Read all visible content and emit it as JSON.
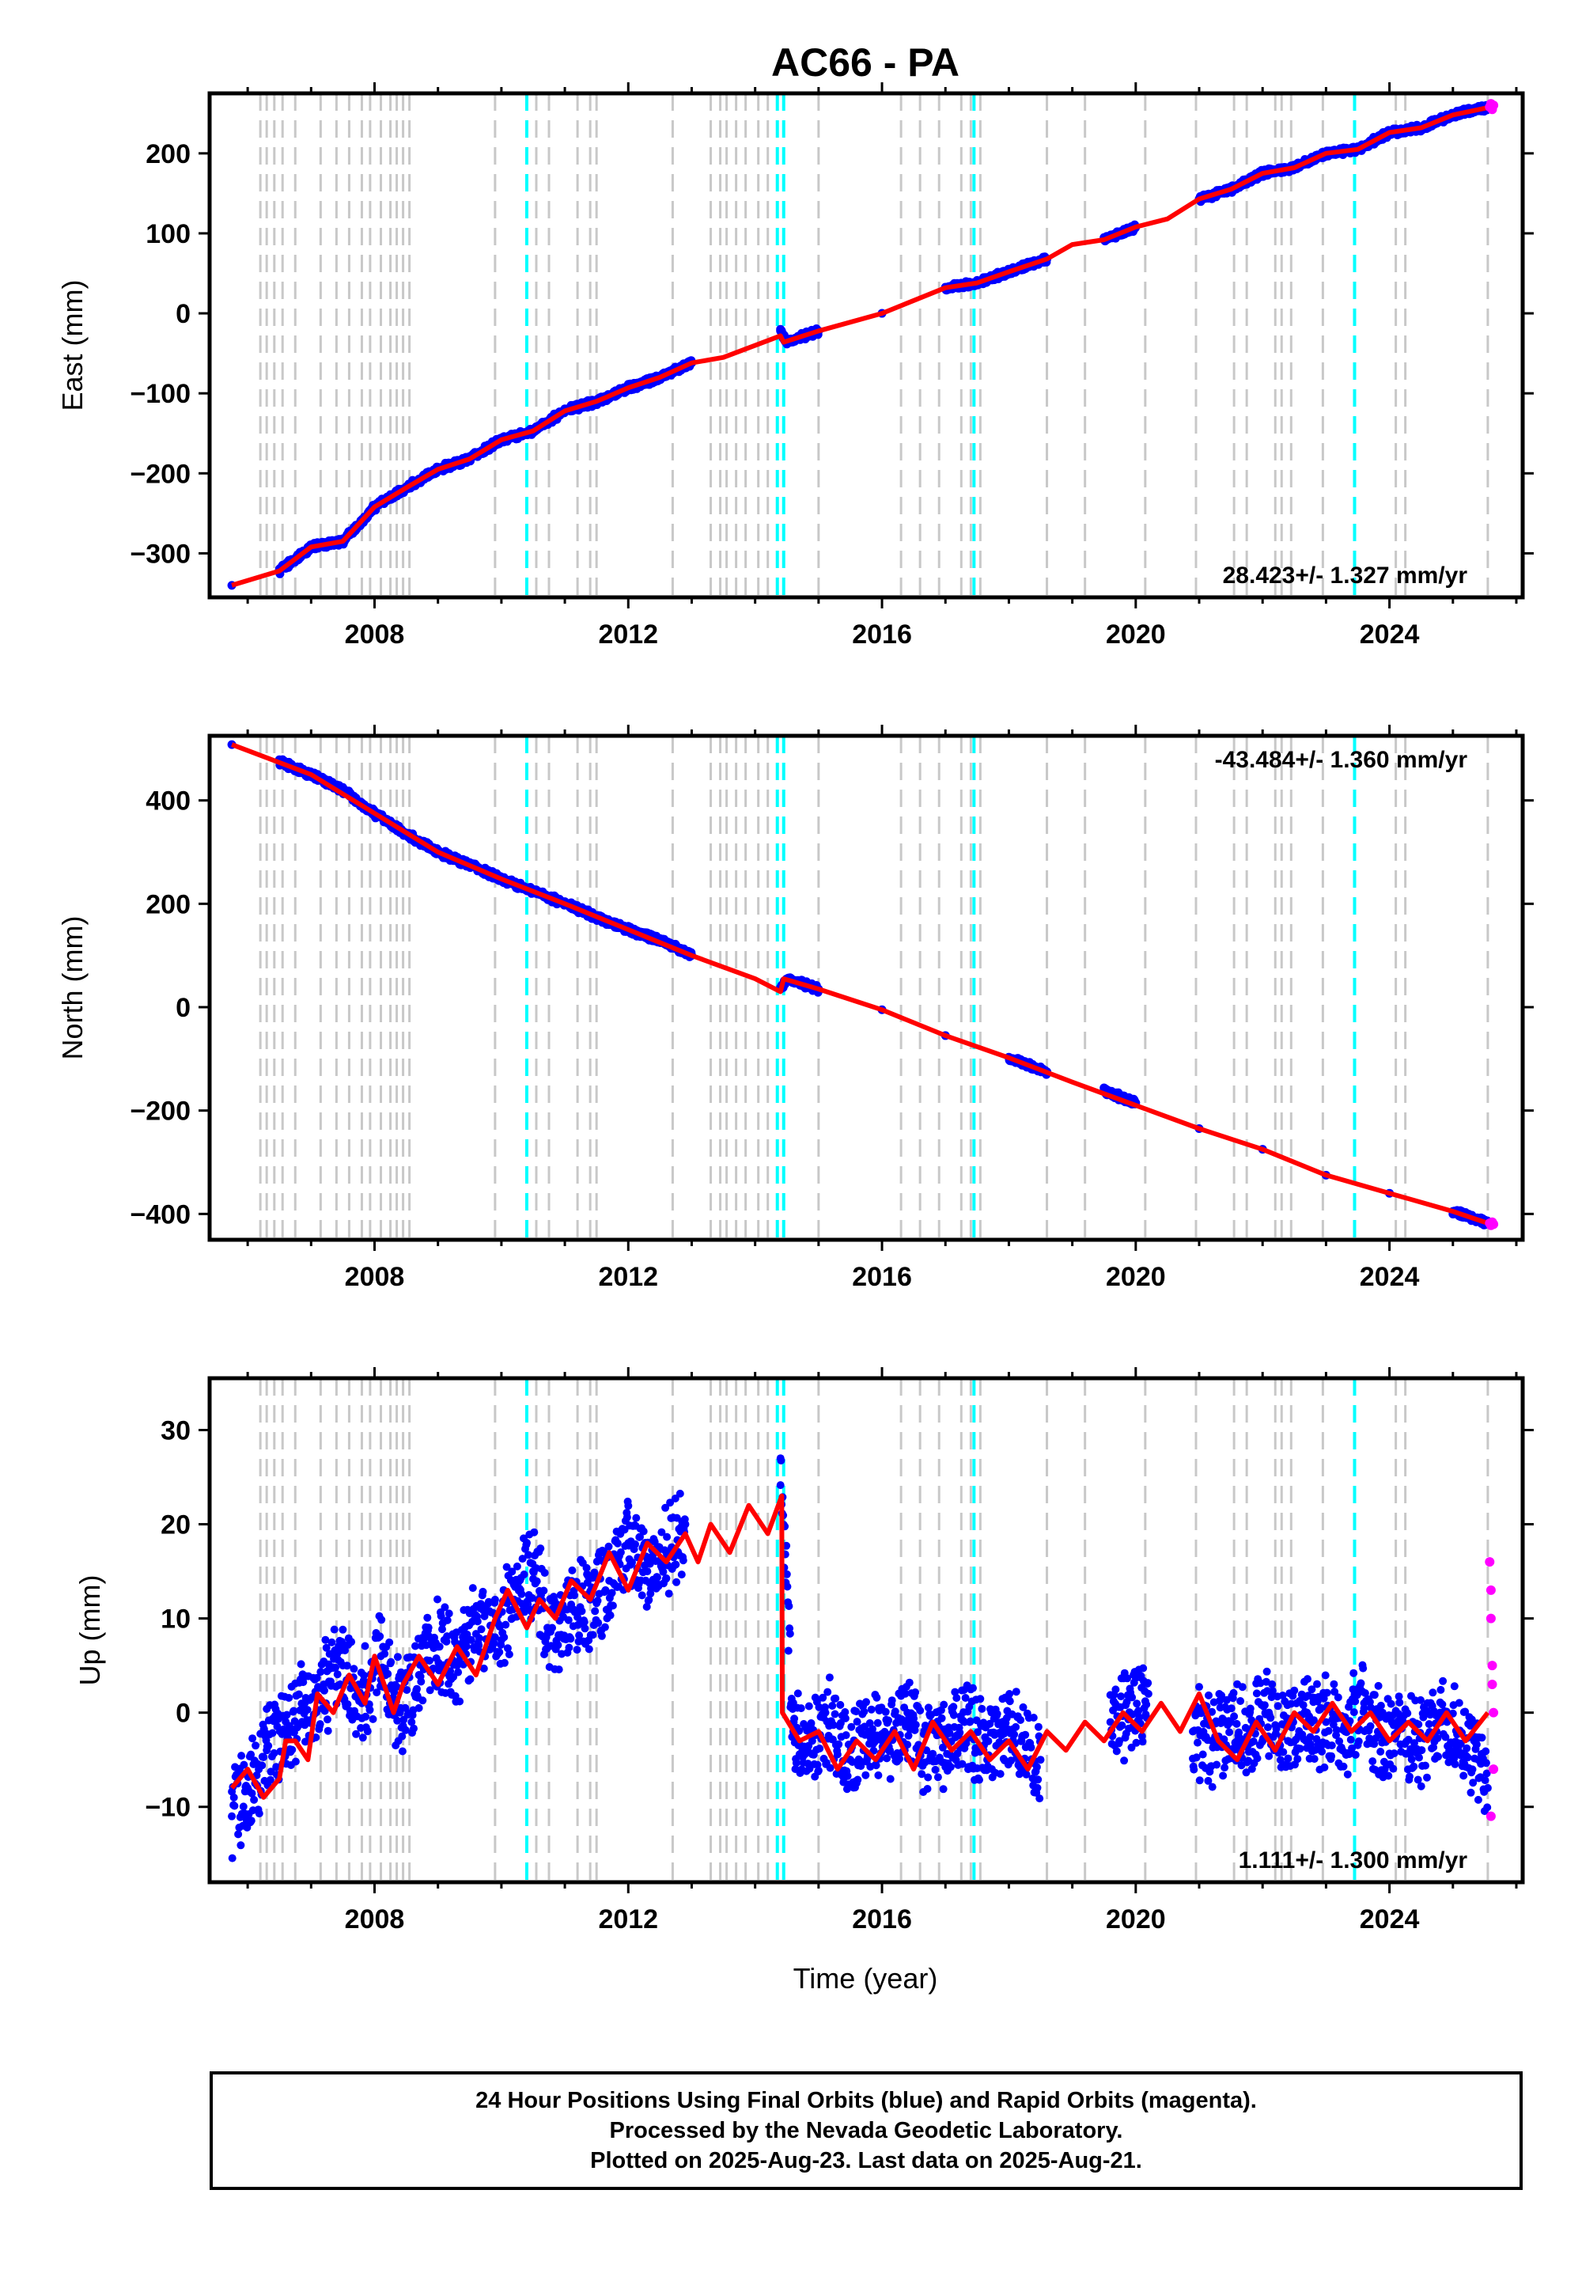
{
  "title": "AC66 - PA",
  "xlabel": "Time (year)",
  "caption": [
    "24 Hour Positions Using Final Orbits (blue) and Rapid Orbits (magenta).",
    "Processed by the Nevada Geodetic Laboratory.",
    "Plotted on 2025-Aug-23. Last data on 2025-Aug-21."
  ],
  "colors": {
    "final": "#0000ff",
    "rapid": "#ff00ff",
    "model": "#ff0000",
    "gray_steps": "#c8c8c8",
    "cyan_steps": "#00ffff"
  },
  "chart_data": [
    {
      "type": "scatter",
      "ylabel": "East (mm)",
      "xlim": [
        2005.4,
        2026.1
      ],
      "ylim": [
        -355,
        275
      ],
      "xticks": [
        2008,
        2012,
        2016,
        2020,
        2024
      ],
      "yticks": [
        -300,
        -200,
        -100,
        0,
        100,
        200
      ],
      "rate": "28.423+/- 1.327 mm/yr",
      "rate_position": "bottom-right",
      "series": [
        {
          "role": "final",
          "x": [
            2005.75,
            2006.5,
            2007.0,
            2007.5,
            2008.0,
            2008.5,
            2009.0,
            2009.5,
            2010.0,
            2010.5,
            2011.0,
            2011.5,
            2012.0,
            2012.5,
            2013.0,
            2014.4,
            2014.5,
            2015.0,
            2016.0,
            2017.0,
            2017.5,
            2018.0,
            2018.6,
            2019.5,
            2020.0,
            2021.0,
            2021.5,
            2022.0,
            2022.5,
            2023.0,
            2023.5,
            2024.0,
            2024.5,
            2025.0,
            2025.55
          ],
          "y": [
            -340,
            -322,
            -292,
            -285,
            -242,
            -218,
            -195,
            -182,
            -158,
            -147,
            -122,
            -110,
            -93,
            -80,
            -62,
            -22,
            -36,
            -22,
            0,
            32,
            38,
            52,
            68,
            92,
            108,
            143,
            155,
            175,
            182,
            200,
            205,
            226,
            232,
            248,
            258
          ]
        },
        {
          "role": "rapid",
          "x": [
            2025.58,
            2025.6,
            2025.62,
            2025.64
          ],
          "y": [
            258,
            262,
            255,
            260
          ]
        },
        {
          "role": "model",
          "x": [
            2005.75,
            2006.5,
            2007.0,
            2007.5,
            2008.0,
            2008.5,
            2009.0,
            2009.5,
            2010.0,
            2010.5,
            2011.0,
            2011.5,
            2012.0,
            2012.5,
            2013.0,
            2013.5,
            2014.4,
            2014.45,
            2015.0,
            2016.0,
            2017.0,
            2017.5,
            2018.0,
            2018.6,
            2019.0,
            2019.5,
            2020.0,
            2020.5,
            2021.0,
            2021.5,
            2022.0,
            2022.5,
            2023.0,
            2023.5,
            2024.0,
            2024.5,
            2025.0,
            2025.6
          ],
          "y": [
            -340,
            -322,
            -292,
            -285,
            -242,
            -218,
            -195,
            -182,
            -158,
            -147,
            -122,
            -110,
            -93,
            -80,
            -62,
            -55,
            -28,
            -36,
            -22,
            0,
            32,
            38,
            52,
            68,
            86,
            92,
            108,
            118,
            143,
            155,
            175,
            182,
            200,
            205,
            226,
            232,
            248,
            258
          ]
        }
      ]
    },
    {
      "type": "scatter",
      "ylabel": "North (mm)",
      "xlim": [
        2005.4,
        2026.1
      ],
      "ylim": [
        -450,
        525
      ],
      "xticks": [
        2008,
        2012,
        2016,
        2020,
        2024
      ],
      "yticks": [
        -400,
        -200,
        0,
        200,
        400
      ],
      "rate": "-43.484+/- 1.360 mm/yr",
      "rate_position": "top-right",
      "series": [
        {
          "role": "final",
          "x": [
            2005.75,
            2006.5,
            2007.0,
            2007.5,
            2008.0,
            2008.5,
            2009.0,
            2009.5,
            2010.0,
            2010.5,
            2011.0,
            2011.5,
            2012.0,
            2012.5,
            2013.0,
            2014.4,
            2014.5,
            2015.0,
            2016.0,
            2017.0,
            2018.0,
            2018.6,
            2019.5,
            2020.0,
            2021.0,
            2022.0,
            2023.0,
            2024.0,
            2025.0,
            2025.55
          ],
          "y": [
            508,
            475,
            450,
            420,
            375,
            335,
            300,
            275,
            248,
            225,
            200,
            175,
            150,
            130,
            100,
            35,
            55,
            35,
            -5,
            -55,
            -98,
            -125,
            -162,
            -185,
            -235,
            -275,
            -325,
            -360,
            -395,
            -418
          ]
        },
        {
          "role": "rapid",
          "x": [
            2025.58,
            2025.6,
            2025.62,
            2025.64
          ],
          "y": [
            -418,
            -422,
            -416,
            -420
          ]
        },
        {
          "role": "model",
          "x": [
            2005.75,
            2007.0,
            2008.0,
            2009.0,
            2010.0,
            2011.0,
            2012.0,
            2013.0,
            2014.0,
            2014.4,
            2014.45,
            2015.0,
            2016.0,
            2017.0,
            2018.0,
            2019.0,
            2020.0,
            2021.0,
            2022.0,
            2023.0,
            2024.0,
            2025.0,
            2025.6
          ],
          "y": [
            508,
            450,
            375,
            300,
            248,
            200,
            150,
            100,
            55,
            30,
            55,
            35,
            -5,
            -55,
            -98,
            -145,
            -190,
            -235,
            -275,
            -325,
            -360,
            -395,
            -420
          ]
        }
      ]
    },
    {
      "type": "scatter",
      "ylabel": "Up (mm)",
      "xlim": [
        2005.4,
        2026.1
      ],
      "ylim": [
        -18,
        35.5
      ],
      "xticks": [
        2008,
        2012,
        2016,
        2020,
        2024
      ],
      "yticks": [
        -10,
        0,
        10,
        20,
        30
      ],
      "rate": "1.111+/- 1.300 mm/yr",
      "rate_position": "bottom-right",
      "series": [
        {
          "role": "final",
          "x": [
            2005.75,
            2006.0,
            2006.3,
            2006.6,
            2006.9,
            2007.2,
            2007.5,
            2007.8,
            2008.1,
            2008.4,
            2008.7,
            2009.0,
            2009.3,
            2009.6,
            2009.9,
            2010.2,
            2010.5,
            2010.8,
            2011.1,
            2011.4,
            2011.7,
            2012.0,
            2012.3,
            2012.6,
            2012.9,
            2014.4,
            2014.6,
            2014.9,
            2015.2,
            2015.5,
            2015.8,
            2016.1,
            2016.4,
            2016.7,
            2017.0,
            2017.3,
            2017.6,
            2017.9,
            2018.2,
            2018.5,
            2019.6,
            2019.9,
            2020.2,
            2020.9,
            2021.2,
            2021.5,
            2021.8,
            2022.1,
            2022.4,
            2022.7,
            2023.0,
            2023.3,
            2023.6,
            2023.9,
            2024.2,
            2024.5,
            2024.8,
            2025.1,
            2025.4,
            2025.55
          ],
          "y": [
            -11,
            -8,
            -4,
            -2,
            1,
            3,
            5,
            1,
            6,
            0,
            4,
            7,
            5,
            10,
            8,
            12,
            15,
            9,
            11,
            12,
            14,
            18,
            15,
            17,
            20,
            27,
            -2,
            -3,
            -1,
            -5,
            -2,
            -3,
            0,
            -4,
            -3,
            -1,
            -4,
            -2,
            -3,
            -5,
            -1,
            0,
            2,
            -2,
            -3,
            -1,
            -2,
            0,
            -3,
            0,
            -1,
            -2,
            1,
            -3,
            -1,
            -4,
            0,
            -2,
            -5,
            -8
          ]
        },
        {
          "role": "rapid",
          "x": [
            2025.58,
            2025.6,
            2025.6,
            2025.62,
            2025.62,
            2025.64,
            2025.64,
            2025.6
          ],
          "y": [
            16,
            13,
            10,
            5,
            3,
            0,
            -6,
            -11
          ]
        },
        {
          "role": "model",
          "x": [
            2005.75,
            2006.0,
            2006.25,
            2006.5,
            2006.6,
            2006.75,
            2006.95,
            2007.1,
            2007.35,
            2007.6,
            2007.85,
            2008.0,
            2008.3,
            2008.45,
            2008.7,
            2009.0,
            2009.3,
            2009.6,
            2009.9,
            2010.1,
            2010.4,
            2010.6,
            2010.85,
            2011.1,
            2011.4,
            2011.7,
            2012.0,
            2012.3,
            2012.6,
            2012.9,
            2013.1,
            2013.3,
            2013.6,
            2013.9,
            2014.2,
            2014.42,
            2014.43,
            2014.7,
            2015.0,
            2015.3,
            2015.6,
            2015.9,
            2016.2,
            2016.5,
            2016.8,
            2017.1,
            2017.4,
            2017.7,
            2018.0,
            2018.3,
            2018.6,
            2018.9,
            2019.2,
            2019.5,
            2019.8,
            2020.1,
            2020.4,
            2020.7,
            2021.0,
            2021.3,
            2021.6,
            2021.9,
            2022.2,
            2022.5,
            2022.8,
            2023.1,
            2023.4,
            2023.7,
            2024.0,
            2024.3,
            2024.6,
            2024.9,
            2025.2,
            2025.55
          ],
          "y": [
            -8,
            -6,
            -9,
            -7,
            -3,
            -3,
            -5,
            2,
            0,
            4,
            1,
            6,
            0,
            3,
            6,
            3,
            7,
            4,
            10,
            13,
            9,
            12,
            10,
            14,
            12,
            17,
            13,
            18,
            16,
            19,
            16,
            20,
            17,
            22,
            19,
            23,
            0,
            -3,
            -2,
            -6,
            -3,
            -5,
            -2,
            -6,
            -1,
            -4,
            -2,
            -5,
            -3,
            -6,
            -2,
            -4,
            -1,
            -3,
            0,
            -2,
            1,
            -2,
            2,
            -3,
            -5,
            -1,
            -4,
            0,
            -2,
            1,
            -2,
            0,
            -3,
            -1,
            -3,
            0,
            -3,
            0
          ]
        }
      ]
    }
  ],
  "step_lines": {
    "gray": [
      2006.2,
      2006.3,
      2006.42,
      2006.55,
      2006.75,
      2007.15,
      2007.4,
      2007.6,
      2007.8,
      2007.93,
      2008.1,
      2008.25,
      2008.35,
      2008.45,
      2008.55,
      2009.9,
      2010.55,
      2010.75,
      2011.2,
      2011.4,
      2011.5,
      2012.7,
      2013.3,
      2013.45,
      2013.55,
      2013.7,
      2013.85,
      2014.05,
      2014.2,
      2015.0,
      2016.3,
      2016.6,
      2016.9,
      2017.25,
      2017.4,
      2017.55,
      2018.6,
      2019.2,
      2020.15,
      2020.95,
      2021.55,
      2021.75,
      2022.2,
      2022.3,
      2022.45,
      2022.95,
      2024.1,
      2024.25,
      2025.55
    ],
    "cyan": [
      2010.4,
      2014.35,
      2014.45,
      2017.45,
      2023.45
    ]
  }
}
